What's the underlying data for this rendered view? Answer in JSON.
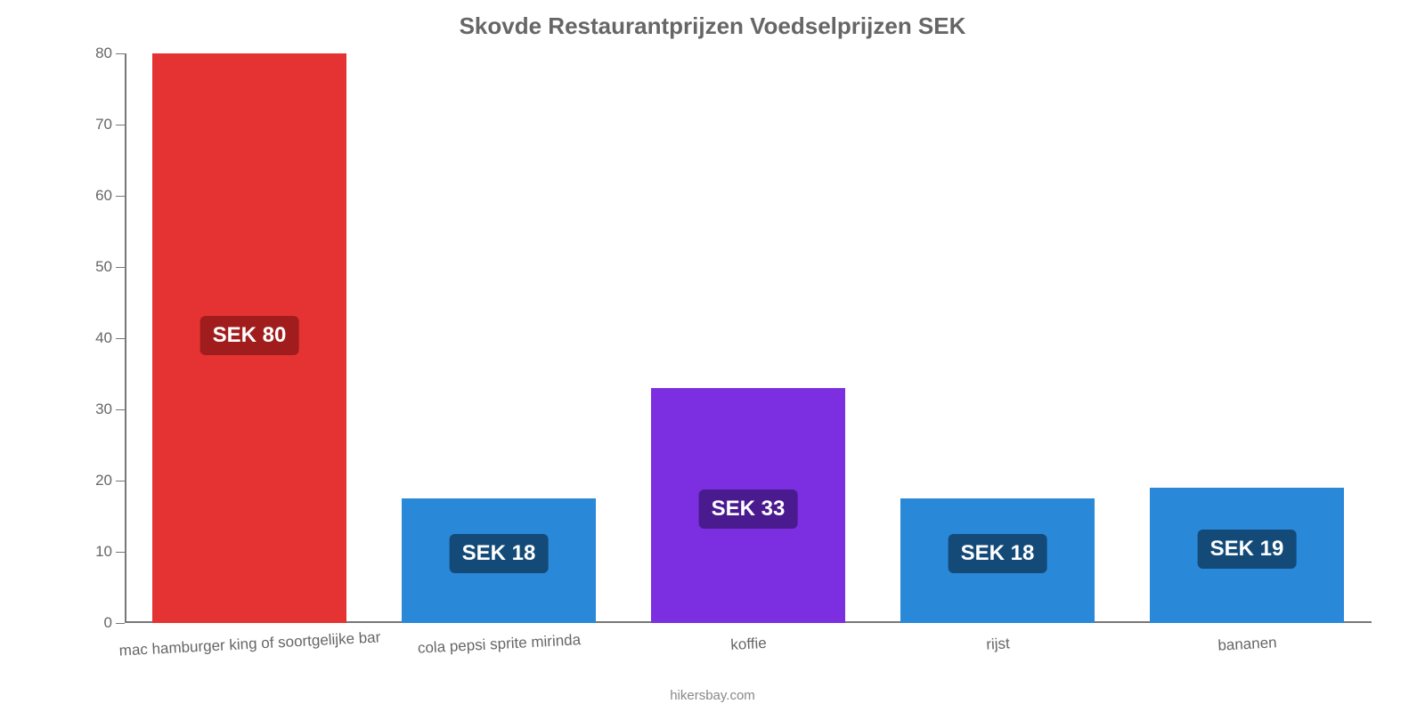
{
  "chart": {
    "type": "bar",
    "title": "Skovde Restaurantprijzen Voedselprijzen SEK",
    "title_fontsize": 26,
    "title_color": "#666666",
    "title_weight": "bold",
    "background_color": "#ffffff",
    "axis_color": "#777777",
    "tick_label_color": "#666666",
    "tick_label_fontsize": 17,
    "x_label_rotation_deg": -3,
    "ylim": [
      0,
      80
    ],
    "ytick_step": 10,
    "yticks": [
      0,
      10,
      20,
      30,
      40,
      50,
      60,
      70,
      80
    ],
    "bar_width": 0.78,
    "categories": [
      "mac hamburger king of soortgelijke bar",
      "cola pepsi sprite mirinda",
      "koffie",
      "rijst",
      "bananen"
    ],
    "values": [
      80,
      17.5,
      33,
      17.5,
      19
    ],
    "value_badges": [
      "SEK 80",
      "SEK 18",
      "SEK 33",
      "SEK 18",
      "SEK 19"
    ],
    "bar_colors": [
      "#e53232",
      "#2a88d8",
      "#7b2fe0",
      "#2a88d8",
      "#2a88d8"
    ],
    "badge_bg_colors": [
      "#a11d1d",
      "#134a78",
      "#4a1a8f",
      "#134a78",
      "#134a78"
    ],
    "badge_text_color": "#ffffff",
    "badge_fontsize": 24,
    "badge_border_radius": 6,
    "source_text": "hikersbay.com",
    "source_fontsize": 15,
    "source_color": "#888888"
  }
}
